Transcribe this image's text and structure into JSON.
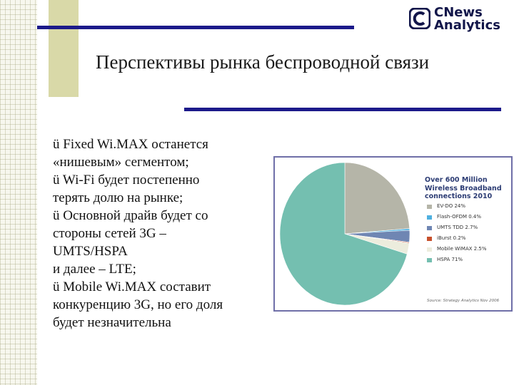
{
  "logo": {
    "line1": "CNews",
    "line2": "Analytics"
  },
  "title": "Перспективы рынка беспроводной связи",
  "bullets": [
    {
      "lines": [
        "ü Fixed Wi.MAX останется",
        "«нишевым» сегментом;"
      ]
    },
    {
      "lines": [
        "ü Wi-Fi будет постепенно",
        "терять долю на рынке;"
      ]
    },
    {
      "lines": [
        "ü Основной драйв будет со",
        " стороны сетей 3G –",
        "UMTS/HSPA",
        " и далее – LTE;"
      ]
    },
    {
      "lines": [
        "ü Mobile Wi.MAX составит",
        " конкуренцию 3G, но его доля",
        "будет незначительна"
      ]
    }
  ],
  "chart": {
    "title_lines": [
      "Over 600 Million",
      "Wireless Broadband",
      "connections 2010"
    ],
    "source": "Source: Strategy Analytics Nov 2006"
  },
  "chart_data": {
    "type": "pie",
    "title": "Over 600 Million Wireless Broadband connections 2010",
    "slices": [
      {
        "label": "EV-DO 24%",
        "value": 24,
        "color": "#b5b5a8"
      },
      {
        "label": "Flash-OFDM 0.4%",
        "value": 0.4,
        "color": "#4fb0e0"
      },
      {
        "label": "UMTS TDD 2.7%",
        "value": 2.7,
        "color": "#6f86b3"
      },
      {
        "label": "iBurst 0.2%",
        "value": 0.2,
        "color": "#c7502c"
      },
      {
        "label": "Mobile WiMAX 2.5%",
        "value": 2.5,
        "color": "#ececdd"
      },
      {
        "label": "HSPA 71%",
        "value": 71,
        "color": "#74bfb0"
      }
    ],
    "start_angle_deg": 0,
    "direction": "clockwise",
    "legend_position": "right"
  }
}
